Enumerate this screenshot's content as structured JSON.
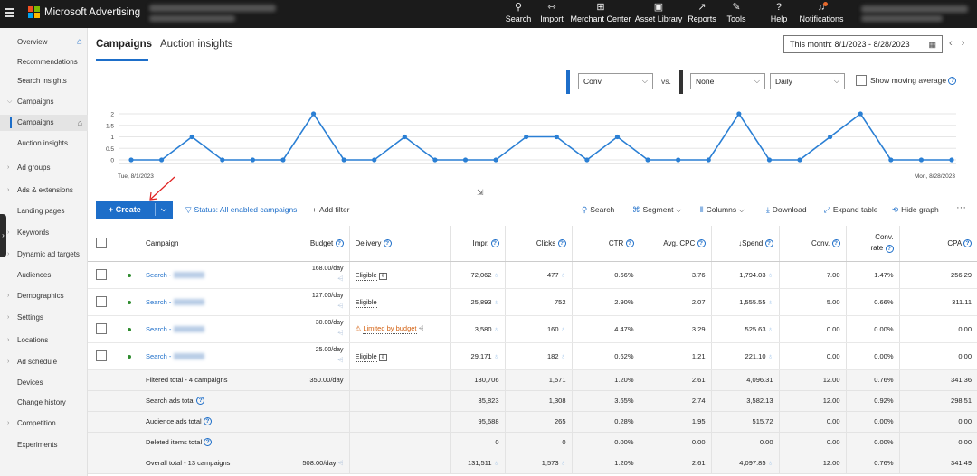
{
  "app": {
    "brand": "Microsoft Advertising"
  },
  "topnav": [
    {
      "label": "Search",
      "icon": "search-icon",
      "glyph": "⚲"
    },
    {
      "label": "Import",
      "icon": "import-icon",
      "glyph": "⇿"
    },
    {
      "label": "Merchant Center",
      "icon": "merchant-center-icon",
      "glyph": "⊞"
    },
    {
      "label": "Asset Library",
      "icon": "asset-library-icon",
      "glyph": "▣"
    },
    {
      "label": "Reports",
      "icon": "reports-icon",
      "glyph": "↗"
    },
    {
      "label": "Tools",
      "icon": "tools-icon",
      "glyph": "✎"
    },
    {
      "label": "Help",
      "icon": "help-icon",
      "glyph": "?"
    },
    {
      "label": "Notifications",
      "icon": "notifications-icon",
      "glyph": "♫"
    }
  ],
  "sidebar": [
    {
      "label": "Overview",
      "chev": "",
      "extra": "home"
    },
    {
      "label": "Recommendations",
      "chev": ""
    },
    {
      "label": "Search insights",
      "chev": ""
    },
    {
      "label": "Campaigns",
      "chev": "v"
    },
    {
      "label": "Campaigns",
      "chev": "",
      "active": true,
      "extra": "homeo"
    },
    {
      "label": "Auction insights",
      "chev": ""
    },
    {
      "label": "Ad groups",
      "chev": ">"
    },
    {
      "label": "Ads & extensions",
      "chev": ">"
    },
    {
      "label": "Landing pages",
      "chev": ""
    },
    {
      "label": "Keywords",
      "chev": ">"
    },
    {
      "label": "Dynamic ad targets",
      "chev": ">"
    },
    {
      "label": "Audiences",
      "chev": ""
    },
    {
      "label": "Demographics",
      "chev": ">"
    },
    {
      "label": "Settings",
      "chev": ">"
    },
    {
      "label": "Locations",
      "chev": ">"
    },
    {
      "label": "Ad schedule",
      "chev": ">"
    },
    {
      "label": "Devices",
      "chev": ""
    },
    {
      "label": "Change history",
      "chev": ""
    },
    {
      "label": "Competition",
      "chev": ">"
    },
    {
      "label": "Experiments",
      "chev": ""
    }
  ],
  "tabs": {
    "campaigns": "Campaigns",
    "auction": "Auction insights"
  },
  "date_range": "This month: 8/1/2023 - 8/28/2023",
  "graph_controls": {
    "metric1": "Conv.",
    "vs": "vs.",
    "metric2": "None",
    "interval": "Daily",
    "moving_average": "Show moving average",
    "metric1_color": "#1d6ec9",
    "metric2_color": "#333333"
  },
  "chart_data": {
    "type": "line",
    "series": [
      {
        "values": [
          0,
          0,
          1,
          0,
          0,
          0,
          2,
          0,
          0,
          1,
          0,
          0,
          0,
          1,
          1,
          0,
          1,
          0,
          0,
          0,
          2,
          0,
          0,
          1,
          2,
          0,
          0,
          0
        ]
      }
    ],
    "y_ticks": [
      "2",
      "1.5",
      "1",
      "0.5",
      "0"
    ],
    "ylim": [
      0,
      2
    ],
    "x_start_label": "Tue, 8/1/2023",
    "x_end_label": "Mon, 8/28/2023",
    "color": "#2a7fd4",
    "grid": true
  },
  "toolbar": {
    "create": "Create",
    "status_filter": "Status: All enabled campaigns",
    "add_filter": "Add filter",
    "search": "Search",
    "segment": "Segment",
    "columns": "Columns",
    "download": "Download",
    "expand_table": "Expand table",
    "hide_graph": "Hide graph"
  },
  "table": {
    "headers": {
      "campaign": "Campaign",
      "budget": "Budget",
      "delivery": "Delivery",
      "impr": "Impr.",
      "clicks": "Clicks",
      "ctr": "CTR",
      "avg_cpc": "Avg. CPC",
      "spend": "Spend",
      "conv": "Conv.",
      "conv_rate_1": "Conv.",
      "conv_rate_2": "rate",
      "cpa": "CPA"
    },
    "rows": [
      {
        "campaign": "Search -",
        "budget": "168.00/day",
        "delivery": "Eligible",
        "delivery_warn": false,
        "impr": "72,062",
        "clicks": "477",
        "ctr": "0.66%",
        "avg_cpc": "3.76",
        "spend": "1,794.03",
        "conv": "7.00",
        "conv_rate": "1.47%",
        "cpa": "256.29"
      },
      {
        "campaign": "Search -",
        "budget": "127.00/day",
        "delivery": "Eligible",
        "delivery_warn": false,
        "impr": "25,893",
        "clicks": "752",
        "ctr": "2.90%",
        "avg_cpc": "2.07",
        "spend": "1,555.55",
        "conv": "5.00",
        "conv_rate": "0.66%",
        "cpa": "311.11"
      },
      {
        "campaign": "Search -",
        "budget": "30.00/day",
        "delivery": "Limited by budget",
        "delivery_warn": true,
        "impr": "3,580",
        "clicks": "160",
        "ctr": "4.47%",
        "avg_cpc": "3.29",
        "spend": "525.63",
        "conv": "0.00",
        "conv_rate": "0.00%",
        "cpa": "0.00"
      },
      {
        "campaign": "Search -",
        "budget": "25.00/day",
        "delivery": "Eligible",
        "delivery_warn": false,
        "impr": "29,171",
        "clicks": "182",
        "ctr": "0.62%",
        "avg_cpc": "1.21",
        "spend": "221.10",
        "conv": "0.00",
        "conv_rate": "0.00%",
        "cpa": "0.00"
      }
    ],
    "totals": [
      {
        "label": "Filtered total - 4 campaigns",
        "budget": "350.00/day",
        "impr": "130,706",
        "clicks": "1,571",
        "ctr": "1.20%",
        "avg_cpc": "2.61",
        "spend": "4,096.31",
        "conv": "12.00",
        "conv_rate": "0.76%",
        "cpa": "341.36",
        "help": false
      },
      {
        "label": "Search ads total",
        "budget": "",
        "impr": "35,823",
        "clicks": "1,308",
        "ctr": "3.65%",
        "avg_cpc": "2.74",
        "spend": "3,582.13",
        "conv": "12.00",
        "conv_rate": "0.92%",
        "cpa": "298.51",
        "help": true
      },
      {
        "label": "Audience ads total",
        "budget": "",
        "impr": "95,688",
        "clicks": "265",
        "ctr": "0.28%",
        "avg_cpc": "1.95",
        "spend": "515.72",
        "conv": "0.00",
        "conv_rate": "0.00%",
        "cpa": "0.00",
        "help": true
      },
      {
        "label": "Deleted items total",
        "budget": "",
        "impr": "0",
        "clicks": "0",
        "ctr": "0.00%",
        "avg_cpc": "0.00",
        "spend": "0.00",
        "conv": "0.00",
        "conv_rate": "0.00%",
        "cpa": "0.00",
        "help": true
      },
      {
        "label": "Overall total - 13 campaigns",
        "budget": "508.00/day",
        "impr": "131,511",
        "clicks": "1,573",
        "ctr": "1.20%",
        "avg_cpc": "2.61",
        "spend": "4,097.85",
        "conv": "12.00",
        "conv_rate": "0.76%",
        "cpa": "341.49",
        "help": false
      }
    ]
  }
}
